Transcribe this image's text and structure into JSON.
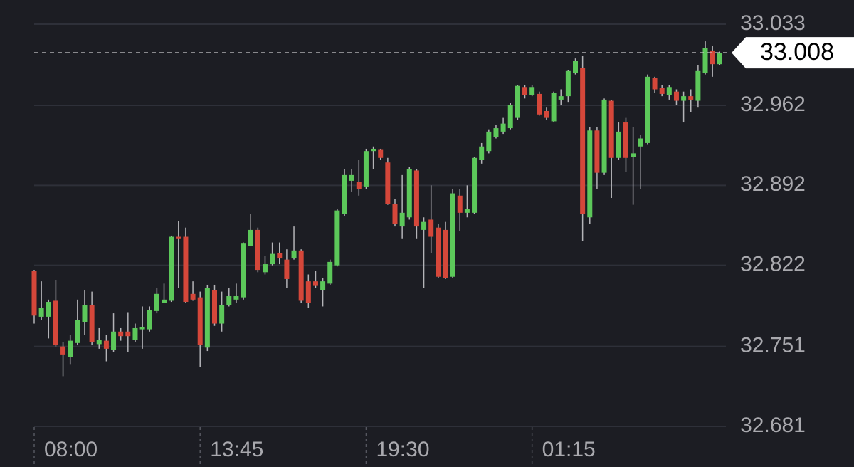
{
  "chart_data": {
    "type": "candlestick",
    "categories": [
      "08:00",
      null,
      null,
      null,
      null,
      null,
      null,
      null,
      null,
      null,
      null,
      null,
      null,
      null,
      null,
      null,
      null,
      null,
      null,
      null,
      null,
      null,
      null,
      "13:45",
      null,
      null,
      null,
      null,
      null,
      null,
      null,
      null,
      null,
      null,
      null,
      null,
      null,
      null,
      null,
      null,
      null,
      null,
      null,
      null,
      null,
      null,
      "19:30",
      null,
      null,
      null,
      null,
      null,
      null,
      null,
      null,
      null,
      null,
      null,
      null,
      null,
      null,
      null,
      null,
      null,
      null,
      null,
      null,
      null,
      null,
      "01:15",
      null,
      null,
      null,
      null,
      null,
      null,
      null,
      null,
      null,
      null,
      null,
      null,
      null,
      null,
      null,
      null,
      null,
      null,
      null,
      null,
      null,
      null,
      null,
      null,
      null,
      null
    ],
    "open": [
      32.817,
      32.777,
      32.777,
      32.791,
      32.751,
      32.742,
      32.754,
      32.772,
      32.787,
      32.753,
      32.756,
      32.748,
      32.764,
      32.764,
      32.757,
      32.766,
      32.766,
      32.782,
      32.789,
      32.791,
      32.847,
      32.847,
      32.797,
      32.794,
      32.75,
      32.8,
      32.771,
      32.787,
      32.792,
      32.794,
      32.839,
      32.853,
      32.816,
      32.823,
      32.833,
      32.827,
      32.828,
      32.835,
      32.808,
      32.808,
      32.8,
      32.806,
      32.822,
      32.867,
      32.896,
      32.895,
      32.891,
      32.922,
      32.923,
      32.912,
      32.876,
      32.856,
      32.864,
      32.905,
      32.853,
      32.862,
      32.855,
      32.853,
      32.812,
      32.883,
      32.868,
      32.868,
      32.914,
      32.922,
      32.934,
      32.939,
      32.942,
      32.951,
      32.978,
      32.971,
      32.972,
      32.957,
      32.948,
      32.967,
      32.97,
      32.99,
      32.995,
      32.864,
      32.94,
      32.903,
      32.966,
      32.916,
      32.947,
      32.917,
      32.926,
      32.929,
      32.986,
      32.977,
      32.971,
      32.974,
      32.966,
      32.97,
      32.966,
      32.99,
      33.01,
      32.998
    ],
    "high": [
      32.818,
      32.808,
      32.792,
      32.809,
      32.755,
      32.761,
      32.792,
      32.8,
      32.799,
      32.767,
      32.761,
      32.78,
      32.767,
      32.781,
      32.771,
      32.786,
      32.786,
      32.802,
      32.806,
      32.848,
      32.861,
      32.855,
      32.808,
      32.799,
      32.805,
      32.805,
      32.799,
      32.802,
      32.806,
      32.842,
      32.867,
      32.855,
      32.83,
      32.842,
      32.842,
      32.836,
      32.856,
      32.836,
      32.814,
      32.817,
      32.811,
      32.827,
      32.871,
      32.906,
      32.906,
      32.914,
      32.924,
      32.926,
      32.924,
      32.916,
      32.88,
      32.901,
      32.908,
      32.906,
      32.864,
      32.892,
      32.858,
      32.86,
      32.889,
      32.889,
      32.892,
      32.917,
      32.929,
      32.941,
      32.945,
      32.951,
      32.964,
      32.98,
      32.98,
      32.98,
      32.974,
      32.96,
      32.974,
      32.976,
      32.993,
      33.003,
      33.005,
      32.943,
      32.943,
      32.968,
      32.967,
      32.947,
      32.951,
      32.943,
      32.936,
      32.989,
      32.987,
      32.98,
      32.98,
      32.976,
      32.974,
      32.976,
      32.997,
      33.018,
      33.014,
      33.009
    ],
    "low": [
      32.771,
      32.774,
      32.758,
      32.751,
      32.725,
      32.735,
      32.752,
      32.761,
      32.752,
      32.749,
      32.738,
      32.746,
      32.756,
      32.746,
      32.755,
      32.749,
      32.764,
      32.78,
      32.789,
      32.79,
      32.802,
      32.789,
      32.791,
      32.733,
      32.747,
      32.769,
      32.764,
      32.786,
      32.789,
      32.792,
      32.839,
      32.816,
      32.814,
      32.822,
      32.823,
      32.802,
      32.827,
      32.789,
      32.785,
      32.802,
      32.786,
      32.805,
      32.821,
      32.865,
      32.886,
      32.883,
      32.889,
      32.906,
      32.914,
      32.875,
      32.856,
      32.845,
      32.862,
      32.845,
      32.802,
      32.833,
      32.811,
      32.81,
      32.811,
      32.852,
      32.864,
      32.867,
      32.911,
      32.92,
      32.933,
      32.937,
      32.941,
      32.949,
      32.968,
      32.97,
      32.953,
      32.949,
      32.947,
      32.962,
      32.965,
      32.989,
      32.843,
      32.858,
      32.889,
      32.901,
      32.881,
      32.914,
      32.904,
      32.875,
      32.889,
      32.928,
      32.973,
      32.97,
      32.967,
      32.962,
      32.947,
      32.956,
      32.96,
      32.989,
      32.987,
      32.997
    ],
    "close": [
      32.778,
      32.785,
      32.79,
      32.752,
      32.744,
      32.756,
      32.774,
      32.787,
      32.755,
      32.757,
      32.749,
      32.764,
      32.76,
      32.76,
      32.767,
      32.768,
      32.783,
      32.797,
      32.792,
      32.847,
      32.845,
      32.79,
      32.792,
      32.752,
      32.802,
      32.771,
      32.787,
      32.795,
      32.795,
      32.841,
      32.853,
      32.818,
      32.823,
      32.832,
      32.828,
      32.81,
      32.835,
      32.791,
      32.789,
      32.804,
      32.808,
      32.825,
      32.87,
      32.901,
      32.901,
      32.889,
      32.922,
      32.924,
      32.916,
      32.876,
      32.858,
      32.868,
      32.906,
      32.856,
      32.86,
      32.847,
      32.812,
      32.811,
      32.885,
      32.868,
      32.871,
      32.916,
      32.926,
      32.939,
      32.942,
      32.946,
      32.962,
      32.979,
      32.971,
      32.978,
      32.954,
      32.951,
      32.973,
      32.97,
      32.992,
      33.001,
      32.867,
      32.94,
      32.903,
      32.967,
      32.916,
      32.939,
      32.916,
      32.92,
      32.933,
      32.987,
      32.976,
      32.972,
      32.978,
      32.966,
      32.97,
      32.967,
      32.992,
      33.012,
      32.998,
      33.008
    ],
    "up_color": "#5cc85a",
    "down_color": "#d5473a",
    "last_price": 33.008,
    "ylim": [
      32.681,
      33.033
    ],
    "yticks": [
      32.681,
      32.751,
      32.822,
      32.892,
      32.962,
      33.033
    ],
    "grid": true
  }
}
